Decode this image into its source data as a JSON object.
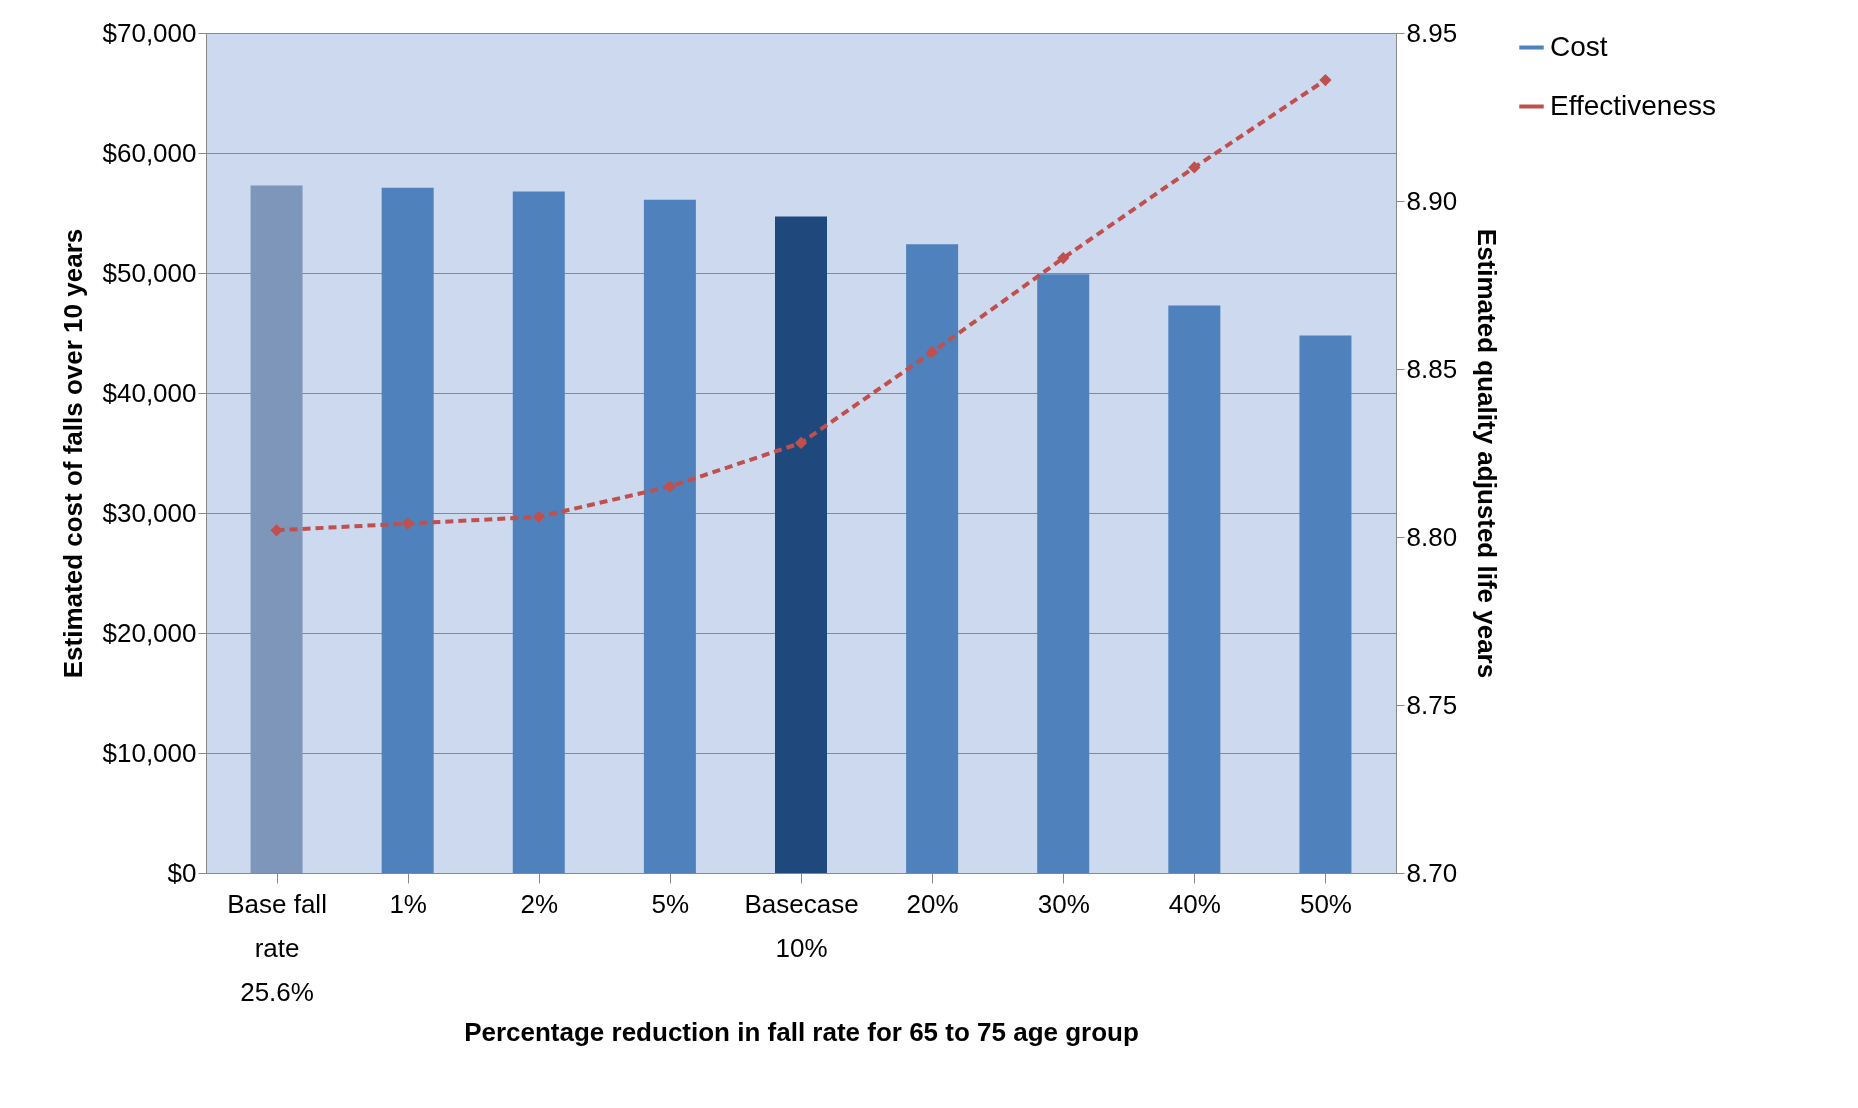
{
  "chart_data": {
    "type": "bar",
    "xlabel": "Percentage reduction in fall rate for 65 to 75 age group",
    "ylabel": "Estimated cost of falls over 10 years",
    "y2label": "Estimated quality adjusted life years",
    "categories": [
      "Base fall\nrate\n25.6%",
      "1%",
      "2%",
      "5%",
      "Basecase\n10%",
      "20%",
      "30%",
      "40%",
      "50%"
    ],
    "series": [
      {
        "name": "Cost",
        "color": "#4f81bd",
        "colors": [
          "#7f96bb",
          "#4f81bd",
          "#4f81bd",
          "#4f81bd",
          "#1f497d",
          "#4f81bd",
          "#4f81bd",
          "#4f81bd",
          "#4f81bd"
        ],
        "values": [
          57300,
          57100,
          56800,
          56100,
          54700,
          52400,
          49900,
          47300,
          44800
        ]
      },
      {
        "name": "Effectiveness",
        "type": "line",
        "axis": "y2",
        "color": "#c0504d",
        "line_style": "dashed",
        "marker": "diamond",
        "values": [
          8.802,
          8.804,
          8.806,
          8.815,
          8.828,
          8.855,
          8.883,
          8.91,
          8.936
        ]
      }
    ],
    "ylim": [
      0,
      70000
    ],
    "yticks": [
      {
        "value": 0,
        "label": "$0"
      },
      {
        "value": 10000,
        "label": "$10,000"
      },
      {
        "value": 20000,
        "label": "$20,000"
      },
      {
        "value": 30000,
        "label": "$30,000"
      },
      {
        "value": 40000,
        "label": "$40,000"
      },
      {
        "value": 50000,
        "label": "$50,000"
      },
      {
        "value": 60000,
        "label": "$60,000"
      },
      {
        "value": 70000,
        "label": "$70,000"
      }
    ],
    "y2lim": [
      8.7,
      8.95
    ],
    "y2ticks": [
      {
        "value": 8.7,
        "label": "8.70"
      },
      {
        "value": 8.75,
        "label": "8.75"
      },
      {
        "value": 8.8,
        "label": "8.80"
      },
      {
        "value": 8.85,
        "label": "8.85"
      },
      {
        "value": 8.9,
        "label": "8.90"
      },
      {
        "value": 8.95,
        "label": "8.95"
      }
    ],
    "grid": "y",
    "legend": "right"
  }
}
